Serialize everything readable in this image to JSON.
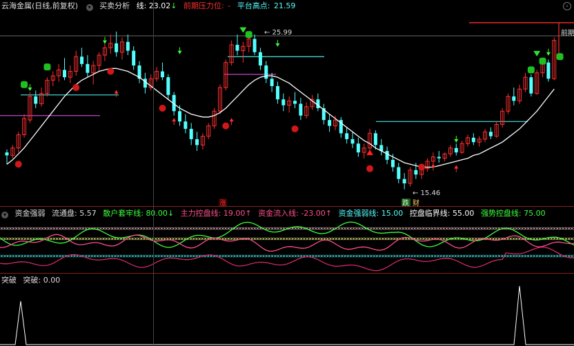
{
  "main_header": {
    "stock": "云海金属(日线,前复权)",
    "indicator": "买卖分析",
    "line_label": "线: 23.02",
    "line_arrow": "↓",
    "pressure_label": "前期压力位:",
    "pressure_value": "-",
    "platform_label": "平台高点:",
    "platform_value": "21.59"
  },
  "main_chart": {
    "type": "candlestick",
    "ylim": [
      14.5,
      27.5
    ],
    "annotations": {
      "high": "25.99",
      "low": "15.46",
      "right_label": "前期",
      "zhang": "涨",
      "die": "跌",
      "cai": "财"
    },
    "candles": [
      [
        18.0,
        18.2,
        17.2,
        17.8
      ],
      [
        17.8,
        18.5,
        17.6,
        18.3
      ],
      [
        18.3,
        19.4,
        18.0,
        19.2
      ],
      [
        19.2,
        20.6,
        19.0,
        20.3
      ],
      [
        20.2,
        22.1,
        20.0,
        21.8
      ],
      [
        21.8,
        22.2,
        21.0,
        21.3
      ],
      [
        21.3,
        22.4,
        21.1,
        22.0
      ],
      [
        22.0,
        23.1,
        21.8,
        22.9
      ],
      [
        22.9,
        23.5,
        22.5,
        23.2
      ],
      [
        23.2,
        24.0,
        22.8,
        23.6
      ],
      [
        23.6,
        24.4,
        22.9,
        23.1
      ],
      [
        23.1,
        23.9,
        22.7,
        23.5
      ],
      [
        23.5,
        24.9,
        23.2,
        24.5
      ],
      [
        24.5,
        25.1,
        23.8,
        24.0
      ],
      [
        24.0,
        24.6,
        23.1,
        23.4
      ],
      [
        23.4,
        24.2,
        22.6,
        23.9
      ],
      [
        23.9,
        24.8,
        23.5,
        24.6
      ],
      [
        24.6,
        25.5,
        24.2,
        25.1
      ],
      [
        25.1,
        26.0,
        24.7,
        25.4
      ],
      [
        25.4,
        26.2,
        24.5,
        24.8
      ],
      [
        24.8,
        25.8,
        24.3,
        25.5
      ],
      [
        25.5,
        26.0,
        24.6,
        24.9
      ],
      [
        24.9,
        25.2,
        23.6,
        23.9
      ],
      [
        23.9,
        24.2,
        22.7,
        23.0
      ],
      [
        23.0,
        23.4,
        22.0,
        22.4
      ],
      [
        22.4,
        23.3,
        22.2,
        23.0
      ],
      [
        23.0,
        23.8,
        22.8,
        23.5
      ],
      [
        23.5,
        24.1,
        22.9,
        23.1
      ],
      [
        23.1,
        23.3,
        21.6,
        21.9
      ],
      [
        21.9,
        22.1,
        20.5,
        20.8
      ],
      [
        20.8,
        21.2,
        19.8,
        20.1
      ],
      [
        20.1,
        20.6,
        19.3,
        19.6
      ],
      [
        19.6,
        20.0,
        18.5,
        18.9
      ],
      [
        18.9,
        19.4,
        18.1,
        18.5
      ],
      [
        18.5,
        19.3,
        18.2,
        19.1
      ],
      [
        19.1,
        20.0,
        18.9,
        19.8
      ],
      [
        19.8,
        21.0,
        19.6,
        20.8
      ],
      [
        20.8,
        22.6,
        20.6,
        22.4
      ],
      [
        22.4,
        24.3,
        22.2,
        24.1
      ],
      [
        24.1,
        25.6,
        23.9,
        25.3
      ],
      [
        25.3,
        26.0,
        24.6,
        24.9
      ],
      [
        24.9,
        25.5,
        24.1,
        25.2
      ],
      [
        25.2,
        26.1,
        24.8,
        25.7
      ],
      [
        25.7,
        26.0,
        24.6,
        24.8
      ],
      [
        24.8,
        25.1,
        23.6,
        23.9
      ],
      [
        23.9,
        24.2,
        22.7,
        23.0
      ],
      [
        23.0,
        23.4,
        22.1,
        22.5
      ],
      [
        22.5,
        22.8,
        21.3,
        21.6
      ],
      [
        21.6,
        22.0,
        20.8,
        21.2
      ],
      [
        21.2,
        21.8,
        20.7,
        21.5
      ],
      [
        21.5,
        22.1,
        21.0,
        21.3
      ],
      [
        21.3,
        21.7,
        20.2,
        20.5
      ],
      [
        20.5,
        21.4,
        20.3,
        21.1
      ],
      [
        21.1,
        21.9,
        20.9,
        21.6
      ],
      [
        21.6,
        22.0,
        20.8,
        21.0
      ],
      [
        21.0,
        21.3,
        19.9,
        20.2
      ],
      [
        20.2,
        20.6,
        19.4,
        19.8
      ],
      [
        19.8,
        20.5,
        19.5,
        20.2
      ],
      [
        20.2,
        20.4,
        19.0,
        19.3
      ],
      [
        19.3,
        19.7,
        18.6,
        18.9
      ],
      [
        18.9,
        19.4,
        18.3,
        18.6
      ],
      [
        18.6,
        19.0,
        17.7,
        18.0
      ],
      [
        18.0,
        18.6,
        17.6,
        18.3
      ],
      [
        18.3,
        19.6,
        18.1,
        19.3
      ],
      [
        19.3,
        19.5,
        18.2,
        18.5
      ],
      [
        18.5,
        18.9,
        17.8,
        18.1
      ],
      [
        18.1,
        18.4,
        17.2,
        17.5
      ],
      [
        17.5,
        17.9,
        16.7,
        17.0
      ],
      [
        17.0,
        17.3,
        15.9,
        16.2
      ],
      [
        16.2,
        16.6,
        15.5,
        15.9
      ],
      [
        15.9,
        17.0,
        15.7,
        16.8
      ],
      [
        16.8,
        17.3,
        16.2,
        16.5
      ],
      [
        16.5,
        17.1,
        16.2,
        16.9
      ],
      [
        16.9,
        17.6,
        16.7,
        17.4
      ],
      [
        17.4,
        18.0,
        17.1,
        17.7
      ],
      [
        17.7,
        18.1,
        17.3,
        17.6
      ],
      [
        17.6,
        18.0,
        17.4,
        17.9
      ],
      [
        17.9,
        18.5,
        17.7,
        18.3
      ],
      [
        18.3,
        18.6,
        17.8,
        18.0
      ],
      [
        18.0,
        18.8,
        17.9,
        18.6
      ],
      [
        18.6,
        19.2,
        18.4,
        19.0
      ],
      [
        19.0,
        19.3,
        18.5,
        18.7
      ],
      [
        18.7,
        19.1,
        18.4,
        18.9
      ],
      [
        18.9,
        19.6,
        18.7,
        19.4
      ],
      [
        19.4,
        19.7,
        18.9,
        19.1
      ],
      [
        19.1,
        20.1,
        19.0,
        19.9
      ],
      [
        19.9,
        21.0,
        19.7,
        20.8
      ],
      [
        20.8,
        22.0,
        20.6,
        21.8
      ],
      [
        21.8,
        22.4,
        21.2,
        21.5
      ],
      [
        21.5,
        22.6,
        21.3,
        22.3
      ],
      [
        22.3,
        23.4,
        22.1,
        23.1
      ],
      [
        23.1,
        23.3,
        21.8,
        22.0
      ],
      [
        22.0,
        23.6,
        21.9,
        23.4
      ],
      [
        23.4,
        24.4,
        23.1,
        24.1
      ],
      [
        24.1,
        24.3,
        22.8,
        23.0
      ],
      [
        23.0,
        25.8,
        22.9,
        25.6
      ]
    ],
    "ma": [
      17.2,
      17.5,
      17.9,
      18.3,
      18.8,
      19.3,
      19.8,
      20.3,
      20.8,
      21.3,
      21.8,
      22.2,
      22.6,
      22.9,
      23.1,
      23.3,
      23.5,
      23.6,
      23.7,
      23.7,
      23.6,
      23.5,
      23.3,
      23.1,
      22.8,
      22.5,
      22.2,
      21.9,
      21.6,
      21.3,
      21.0,
      20.8,
      20.6,
      20.5,
      20.4,
      20.4,
      20.5,
      20.7,
      21.0,
      21.4,
      21.8,
      22.2,
      22.6,
      22.9,
      23.1,
      23.2,
      23.2,
      23.1,
      22.9,
      22.7,
      22.4,
      22.1,
      21.8,
      21.5,
      21.2,
      20.9,
      20.6,
      20.3,
      20.0,
      19.7,
      19.4,
      19.1,
      18.8,
      18.6,
      18.3,
      18.1,
      17.9,
      17.7,
      17.5,
      17.3,
      17.2,
      17.1,
      17.0,
      17.0,
      17.0,
      17.1,
      17.2,
      17.3,
      17.4,
      17.5,
      17.6,
      17.8,
      17.9,
      18.1,
      18.3,
      18.5,
      18.7,
      19.0,
      19.3,
      19.6,
      20.0,
      20.4,
      20.8,
      21.3,
      21.8,
      22.3
    ]
  },
  "ind1_header": {
    "name": "资金强弱",
    "flow_label": "流通盘:",
    "flow_value": "5.57",
    "retail_label": "散户套牢线:",
    "retail_value": "80.00",
    "retail_arrow": "↓",
    "main_label": "主力控盘线:",
    "main_value": "19.00",
    "main_arrow": "↑",
    "inflow_label": "资金流入线:",
    "inflow_value": "-23.00",
    "inflow_arrow": "↑",
    "strength_label": "资金强弱线:",
    "strength_value": "15.00",
    "critical_label": "控盘临界线:",
    "critical_value": "55.00",
    "strong_label": "强势控盘线:",
    "strong_value": "75.00"
  },
  "ind2_header": {
    "name": "突破",
    "value_label": "突破:",
    "value": "0.00"
  },
  "colors": {
    "up": "#ff3030",
    "down": "#54ffff",
    "ma": "#ffffff",
    "green": "#3cff3c",
    "pink": "#ff4f8f",
    "white_x": "#ffff80"
  }
}
